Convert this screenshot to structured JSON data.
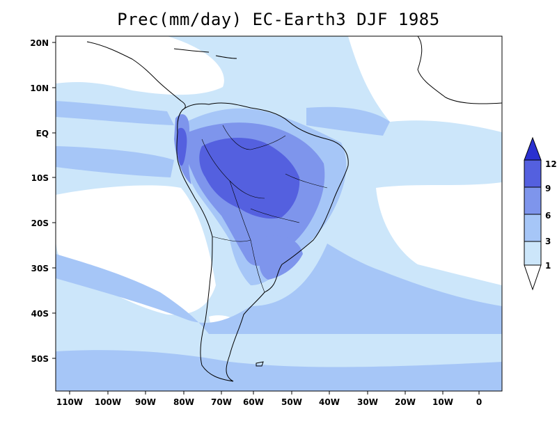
{
  "title": "Prec(mm/day) EC-Earth3 DJF 1985",
  "lat_labels": [
    "20N",
    "10N",
    "EQ",
    "10S",
    "20S",
    "30S",
    "40S",
    "50S"
  ],
  "lon_labels": [
    "110W",
    "100W",
    "90W",
    "80W",
    "70W",
    "60W",
    "50W",
    "40W",
    "30W",
    "20W",
    "10W",
    "0"
  ],
  "colorbar": {
    "unit": "mm/day",
    "levels": [
      "1",
      "3",
      "6",
      "9",
      "12"
    ],
    "colors": [
      "#ffffff",
      "#cce6fa",
      "#a6c6f7",
      "#7e95ec",
      "#5460df",
      "#2a30d0"
    ]
  },
  "colors": {
    "ocean_dry": "#ffffff",
    "level_1_3": "#cce6fa",
    "level_3_6": "#a6c6f7",
    "level_6_9": "#7e95ec",
    "level_9_12": "#5460df",
    "above_12": "#2a30d0"
  }
}
